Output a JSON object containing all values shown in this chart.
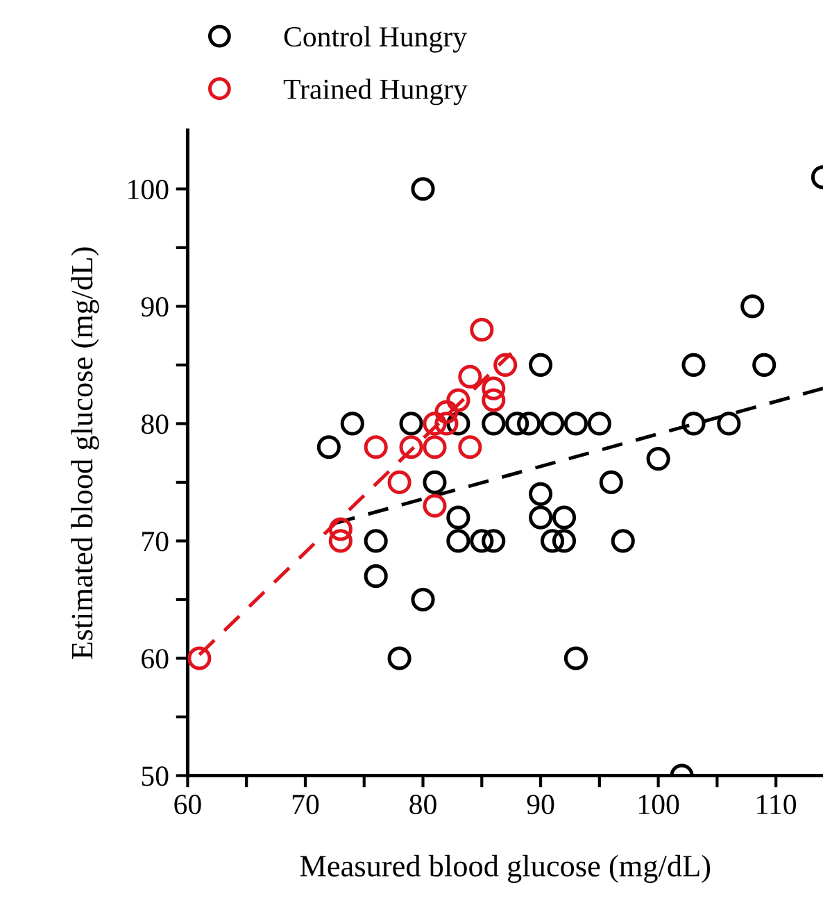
{
  "chart_data": {
    "type": "scatter",
    "xlabel": "Measured blood glucose (mg/dL)",
    "ylabel": "Estimated blood glucose (mg/dL)",
    "xlim": [
      60,
      114
    ],
    "ylim": [
      50,
      105
    ],
    "xticks": [
      60,
      {
        "value": 65,
        "label": null
      },
      70,
      {
        "value": 75,
        "label": null
      },
      80,
      {
        "value": 85,
        "label": null
      },
      90,
      {
        "value": 95,
        "label": null
      },
      100,
      {
        "value": 105,
        "label": null
      },
      110
    ],
    "yticks": [
      50,
      {
        "value": 55,
        "label": null
      },
      60,
      {
        "value": 65,
        "label": null
      },
      70,
      {
        "value": 75,
        "label": null
      },
      80,
      {
        "value": 85,
        "label": null
      },
      90,
      {
        "value": 95,
        "label": null
      },
      100
    ],
    "grid": false,
    "legend": "top left",
    "marker": "circle",
    "series": [
      {
        "name": "Control Hungry",
        "color": "#000000",
        "x": [
          80,
          114,
          108,
          90,
          103,
          109,
          74,
          79,
          83,
          86,
          88,
          89,
          91,
          93,
          95,
          103,
          106,
          72,
          100,
          81,
          96,
          90,
          83,
          90,
          92,
          76,
          83,
          85,
          86,
          91,
          92,
          97,
          76,
          80,
          78,
          93,
          102
        ],
        "values": [
          100,
          101,
          90,
          85,
          85,
          85,
          80,
          80,
          80,
          80,
          80,
          80,
          80,
          80,
          80,
          80,
          80,
          78,
          77,
          75,
          75,
          74,
          72,
          72,
          72,
          70,
          70,
          70,
          70,
          70,
          70,
          70,
          67,
          65,
          60,
          60,
          50
        ]
      },
      {
        "name": "Trained Hungry",
        "color": "#e0141e",
        "x": [
          85,
          87,
          84,
          86,
          86,
          83,
          82,
          81,
          82,
          76,
          79,
          81,
          84,
          78,
          81,
          73,
          73,
          61
        ],
        "values": [
          88,
          85,
          84,
          83,
          82,
          82,
          81,
          80,
          80,
          78,
          78,
          78,
          78,
          75,
          73,
          71,
          70,
          60
        ]
      },
      {
        "type": "line",
        "color": "#000000",
        "line_style": "dashed",
        "marker": "none",
        "x": [
          72.5,
          114
        ],
        "values": [
          71.5,
          83
        ]
      },
      {
        "type": "line",
        "color": "#e0141e",
        "line_style": "dashed",
        "marker": "none",
        "x": [
          61,
          87.5
        ],
        "values": [
          60.3,
          86
        ]
      }
    ]
  }
}
